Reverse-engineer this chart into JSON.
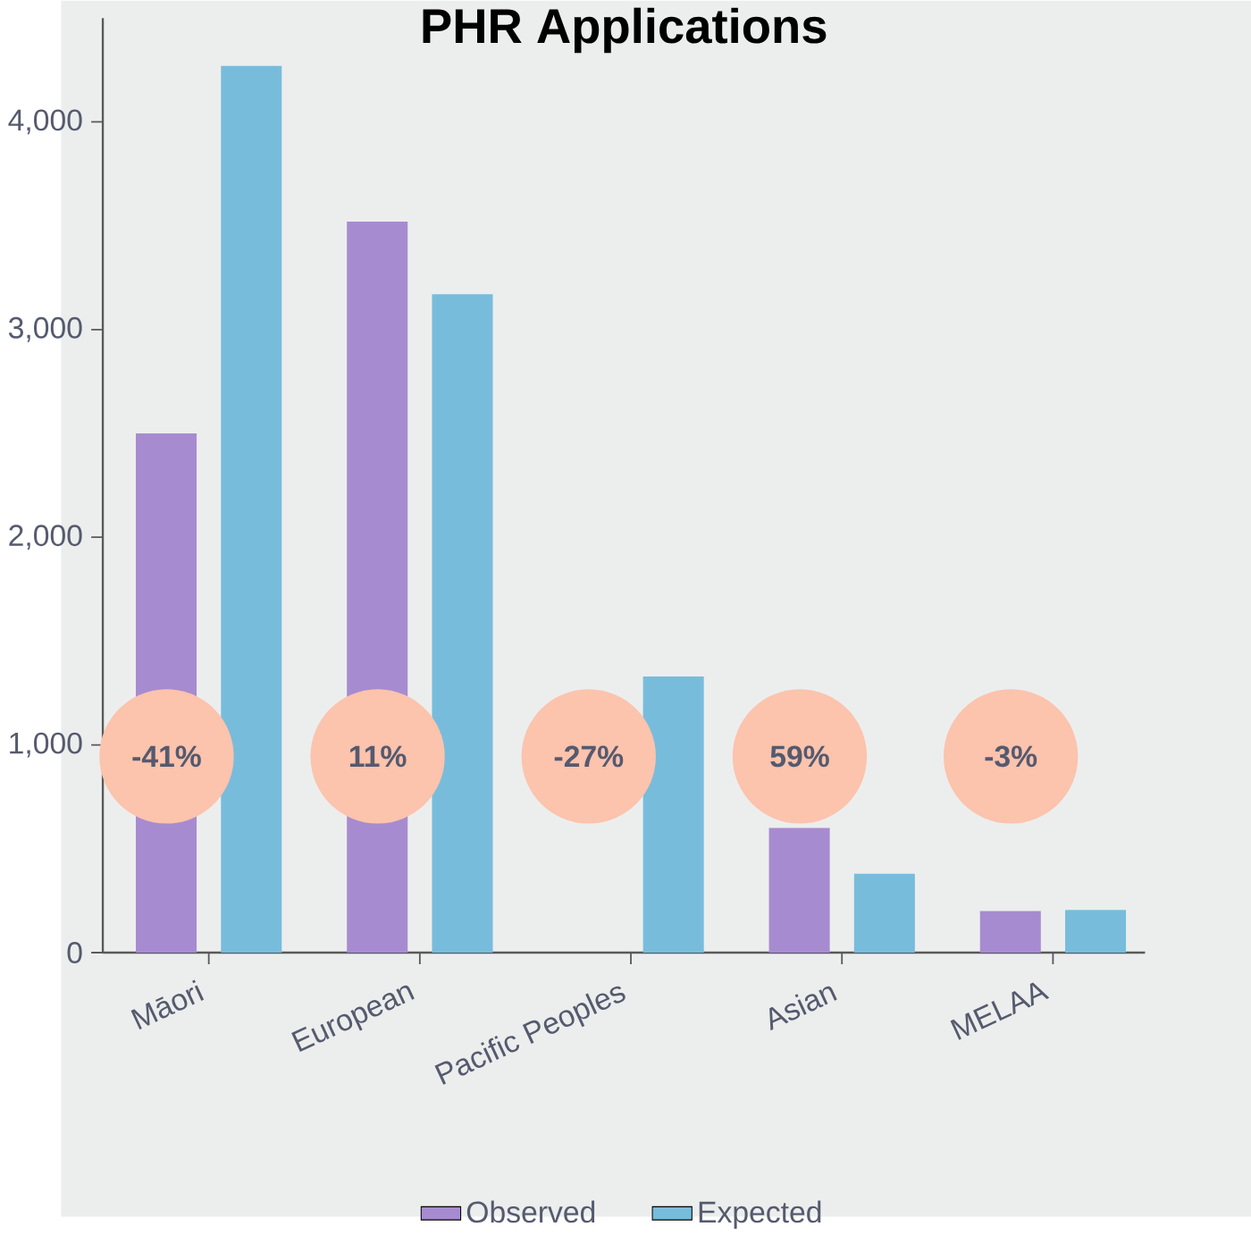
{
  "chart_data": {
    "type": "bar",
    "title": "PHR Applications",
    "categories": [
      "Māori",
      "European",
      "Pacific Peoples",
      "Asian",
      "MELAA"
    ],
    "series": [
      {
        "name": "Observed",
        "color": "#a78bd0",
        "values": [
          2500,
          3520,
          null,
          600,
          200
        ]
      },
      {
        "name": "Expected",
        "color": "#78bcdc",
        "values": [
          4270,
          3170,
          1330,
          380,
          205
        ]
      }
    ],
    "ylim": [
      0,
      4500
    ],
    "yticks": [
      0,
      {
        "value": 1000,
        "label": "1,000"
      },
      {
        "value": 2000,
        "label": "2,000"
      },
      {
        "value": 3000,
        "label": "3,000"
      },
      {
        "value": 4000,
        "label": "4,000"
      }
    ],
    "annotations": [
      "-41%",
      "11%",
      "-27%",
      "59%",
      "-3%"
    ],
    "grid": false,
    "legend": "bottom"
  }
}
